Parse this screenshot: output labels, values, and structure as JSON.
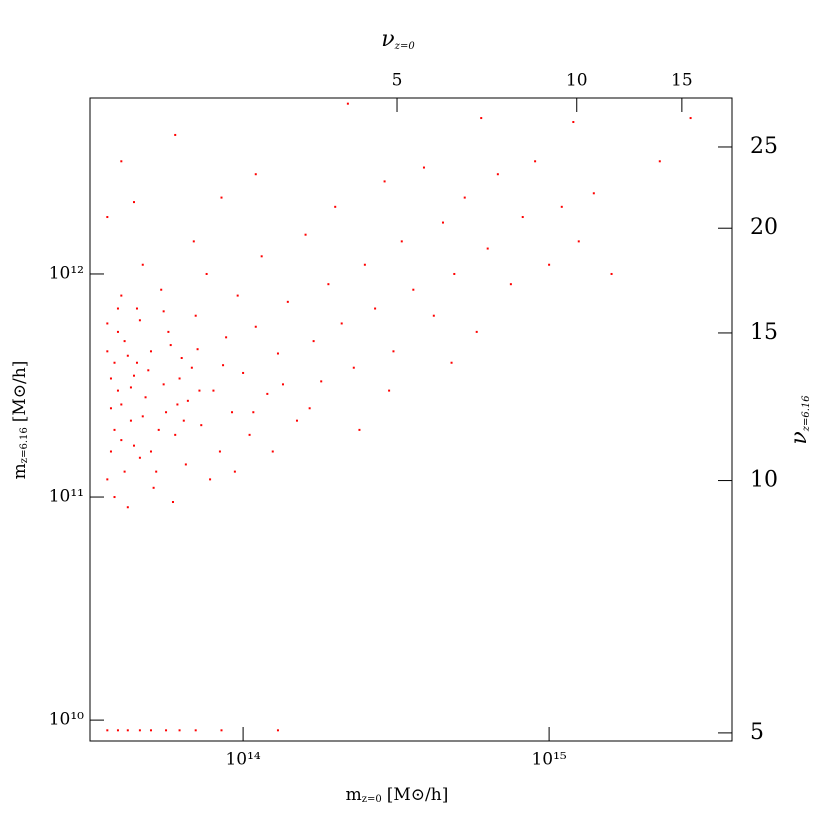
{
  "chart_data": {
    "type": "scatter",
    "x_label": "m",
    "x_label_sub": "z=0",
    "x_label_unit": "[M⊙/h]",
    "y_label": "m",
    "y_label_sub": "z=6.16",
    "y_label_unit": "[M⊙/h]",
    "x2_label": "ν",
    "x2_label_sub": "z=0",
    "y2_label": "ν",
    "y2_label_sub": "z=6.16",
    "xscale": "log",
    "yscale": "log",
    "x2scale": "log",
    "y2scale": "log",
    "xlim": [
      31600000000000.0,
      3960000000000000.0
    ],
    "ylim": [
      8060000000.0,
      6150000000000.0
    ],
    "x2lim": [
      1.53,
      18.2
    ],
    "y2lim": [
      4.89,
      28.6
    ],
    "xticks": [
      {
        "value": 100000000000000.0,
        "label": "10¹⁴"
      },
      {
        "value": 1000000000000000.0,
        "label": "10¹⁵"
      }
    ],
    "yticks": [
      {
        "value": 10000000000.0,
        "label": "10¹⁰"
      },
      {
        "value": 100000000000.0,
        "label": "10¹¹"
      },
      {
        "value": 1000000000000.0,
        "label": "10¹²"
      }
    ],
    "x2ticks": [
      5,
      10,
      15
    ],
    "y2ticks": [
      5,
      10,
      15,
      20,
      25
    ],
    "color": "#ff0000",
    "x": [
      36000000000000.0,
      37000000000000.0,
      38000000000000.0,
      36000000000000.0,
      39000000000000.0,
      40000000000000.0,
      41000000000000.0,
      42000000000000.0,
      43000000000000.0,
      44000000000000.0,
      45000000000000.0,
      46000000000000.0,
      48000000000000.0,
      50000000000000.0,
      51000000000000.0,
      53000000000000.0,
      55000000000000.0,
      57000000000000.0,
      59000000000000.0,
      61000000000000.0,
      63000000000000.0,
      65000000000000.0,
      68000000000000.0,
      70000000000000.0,
      73000000000000.0,
      76000000000000.0,
      80000000000000.0,
      84000000000000.0,
      88000000000000.0,
      92000000000000.0,
      96000000000000.0,
      100000000000000.0,
      105000000000000.0,
      110000000000000.0,
      115000000000000.0,
      120000000000000.0,
      130000000000000.0,
      140000000000000.0,
      150000000000000.0,
      160000000000000.0,
      170000000000000.0,
      180000000000000.0,
      190000000000000.0,
      200000000000000.0,
      210000000000000.0,
      230000000000000.0,
      250000000000000.0,
      270000000000000.0,
      290000000000000.0,
      310000000000000.0,
      330000000000000.0,
      360000000000000.0,
      390000000000000.0,
      420000000000000.0,
      450000000000000.0,
      490000000000000.0,
      530000000000000.0,
      580000000000000.0,
      630000000000000.0,
      680000000000000.0,
      750000000000000.0,
      820000000000000.0,
      900000000000000.0,
      1000000000000000.0,
      1100000000000000.0,
      1200000000000000.0,
      1250000000000000.0,
      1400000000000000.0,
      1600000000000000.0,
      2300000000000000.0,
      2900000000000000.0,
      600000000000000.0,
      220000000000000.0,
      60000000000000.0,
      40000000000000.0,
      36000000000000.0,
      37000000000000.0,
      38000000000000.0,
      39000000000000.0,
      40000000000000.0,
      41000000000000.0,
      42000000000000.0,
      43000000000000.0,
      44000000000000.0,
      46000000000000.0,
      47000000000000.0,
      49000000000000.0,
      52000000000000.0,
      54000000000000.0,
      56000000000000.0,
      58000000000000.0,
      60000000000000.0,
      62000000000000.0,
      66000000000000.0,
      71000000000000.0,
      78000000000000.0,
      86000000000000.0,
      94000000000000.0,
      108000000000000.0,
      125000000000000.0,
      135000000000000.0,
      165000000000000.0,
      240000000000000.0,
      300000000000000.0,
      480000000000000.0,
      37000000000000.0,
      38000000000000.0,
      40000000000000.0,
      45000000000000.0,
      50000000000000.0,
      55000000000000.0,
      64000000000000.0,
      72000000000000.0,
      36000000000000.0,
      39000000000000.0,
      47000000000000.0,
      69000000000000.0,
      85000000000000.0,
      110000000000000.0,
      44000000000000.0,
      36000000000000.0,
      39000000000000.0,
      42000000000000.0,
      46000000000000.0,
      50000000000000.0,
      56000000000000.0,
      62000000000000.0,
      70000000000000.0,
      85000000000000.0,
      130000000000000.0
    ],
    "y": [
      120000000000.0,
      250000000000.0,
      400000000000.0,
      600000000000.0,
      300000000000.0,
      180000000000.0,
      500000000000.0,
      90000000000.0,
      220000000000.0,
      350000000000.0,
      700000000000.0,
      150000000000.0,
      280000000000.0,
      450000000000.0,
      110000000000.0,
      200000000000.0,
      320000000000.0,
      550000000000.0,
      95000000000.0,
      260000000000.0,
      420000000000.0,
      140000000000.0,
      380000000000.0,
      650000000000.0,
      210000000000.0,
      1000000000000.0,
      300000000000.0,
      160000000000.0,
      520000000000.0,
      240000000000.0,
      800000000000.0,
      360000000000.0,
      190000000000.0,
      580000000000.0,
      1200000000000.0,
      290000000000.0,
      440000000000.0,
      750000000000.0,
      220000000000.0,
      1500000000000.0,
      500000000000.0,
      330000000000.0,
      900000000000.0,
      2000000000000.0,
      600000000000.0,
      380000000000.0,
      1100000000000.0,
      700000000000.0,
      2600000000000.0,
      450000000000.0,
      1400000000000.0,
      850000000000.0,
      3000000000000.0,
      650000000000.0,
      1700000000000.0,
      1000000000000.0,
      2200000000000.0,
      550000000000.0,
      1300000000000.0,
      2800000000000.0,
      900000000000.0,
      1800000000000.0,
      3200000000000.0,
      1100000000000.0,
      2000000000000.0,
      4800000000000.0,
      1400000000000.0,
      2300000000000.0,
      1000000000000.0,
      3200000000000.0,
      5000000000000.0,
      5000000000000.0,
      5800000000000.0,
      4200000000000.0,
      3200000000000.0,
      1800000000000.0,
      160000000000.0,
      200000000000.0,
      550000000000.0,
      800000000000.0,
      130000000000.0,
      430000000000.0,
      310000000000.0,
      170000000000.0,
      620000000000.0,
      230000000000.0,
      370000000000.0,
      130000000000.0,
      850000000000.0,
      240000000000.0,
      480000000000.0,
      190000000000.0,
      340000000000.0,
      270000000000.0,
      460000000000.0,
      120000000000.0,
      390000000000.0,
      130000000000.0,
      240000000000.0,
      160000000000.0,
      320000000000.0,
      250000000000.0,
      200000000000.0,
      300000000000.0,
      400000000000.0,
      340000000000.0,
      100000000000.0,
      260000000000.0,
      400000000000.0,
      160000000000.0,
      680000000000.0,
      220000000000.0,
      300000000000.0,
      450000000000.0,
      700000000000.0,
      1100000000000.0,
      1400000000000.0,
      2200000000000.0,
      2800000000000.0,
      2100000000000.0,
      9000000000.0,
      9000000000.0,
      9000000000.0,
      9000000000.0,
      9000000000.0,
      9000000000.0,
      9000000000.0,
      9000000000.0,
      9000000000.0,
      9000000000.0
    ]
  }
}
